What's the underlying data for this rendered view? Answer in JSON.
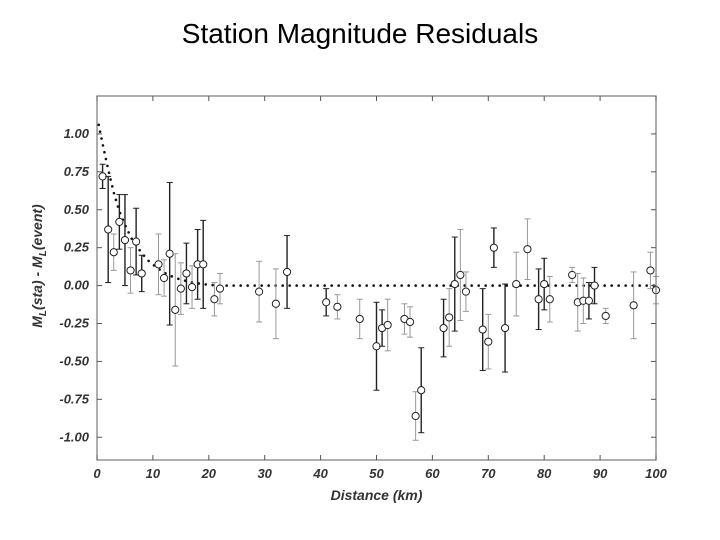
{
  "slide": {
    "title": "Station Magnitude Residuals"
  },
  "chart_data": {
    "type": "scatter",
    "xlabel": "Distance (km)",
    "ylabel": {
      "base1": "M",
      "sub1": "L",
      "mid": "(sta) - M",
      "base2": "",
      "sub2": "L",
      "tail": "(event)"
    },
    "xlim": [
      0,
      100
    ],
    "ylim": [
      -1.15,
      1.25
    ],
    "x_ticks": [
      0,
      10,
      20,
      30,
      40,
      50,
      60,
      70,
      80,
      90,
      100
    ],
    "x_tick_labels": [
      "0",
      "10",
      "20",
      "30",
      "40",
      "50",
      "60",
      "70",
      "80",
      "90",
      "100"
    ],
    "y_ticks": [
      1.0,
      0.75,
      0.5,
      0.25,
      0.0,
      -0.25,
      -0.5,
      -0.75,
      -1.0
    ],
    "y_tick_labels": [
      "1.00",
      "0.75",
      "0.50",
      "0.25",
      "0.00",
      "-0.25",
      "-0.50",
      "-0.75",
      "-1.00"
    ],
    "grid": false,
    "points": [
      {
        "x": 1.0,
        "y": 0.72,
        "err": 0.08,
        "dark": true
      },
      {
        "x": 2.0,
        "y": 0.37,
        "err": 0.35,
        "dark": true
      },
      {
        "x": 3.0,
        "y": 0.22,
        "err": 0.12,
        "dark": false
      },
      {
        "x": 4.0,
        "y": 0.42,
        "err": 0.18,
        "dark": true
      },
      {
        "x": 5.0,
        "y": 0.3,
        "err": 0.3,
        "dark": true
      },
      {
        "x": 6.0,
        "y": 0.1,
        "err": 0.15,
        "dark": false
      },
      {
        "x": 7.0,
        "y": 0.29,
        "err": 0.22,
        "dark": true
      },
      {
        "x": 8.0,
        "y": 0.08,
        "err": 0.12,
        "dark": true
      },
      {
        "x": 11.0,
        "y": 0.14,
        "err": 0.2,
        "dark": false
      },
      {
        "x": 12.0,
        "y": 0.05,
        "err": 0.12,
        "dark": false
      },
      {
        "x": 13.0,
        "y": 0.21,
        "err": 0.47,
        "dark": true
      },
      {
        "x": 14.0,
        "y": -0.16,
        "err": 0.37,
        "dark": false
      },
      {
        "x": 15.0,
        "y": -0.02,
        "err": 0.17,
        "dark": false
      },
      {
        "x": 16.0,
        "y": 0.08,
        "err": 0.2,
        "dark": true
      },
      {
        "x": 17.0,
        "y": -0.01,
        "err": 0.14,
        "dark": false
      },
      {
        "x": 18.0,
        "y": 0.14,
        "err": 0.23,
        "dark": true
      },
      {
        "x": 19.0,
        "y": 0.14,
        "err": 0.29,
        "dark": true
      },
      {
        "x": 21.0,
        "y": -0.09,
        "err": 0.11,
        "dark": false
      },
      {
        "x": 22.0,
        "y": -0.02,
        "err": 0.1,
        "dark": false
      },
      {
        "x": 29.0,
        "y": -0.04,
        "err": 0.2,
        "dark": false
      },
      {
        "x": 32.0,
        "y": -0.12,
        "err": 0.23,
        "dark": false
      },
      {
        "x": 34.0,
        "y": 0.09,
        "err": 0.24,
        "dark": true
      },
      {
        "x": 41.0,
        "y": -0.11,
        "err": 0.09,
        "dark": true
      },
      {
        "x": 43.0,
        "y": -0.14,
        "err": 0.08,
        "dark": false
      },
      {
        "x": 47.0,
        "y": -0.22,
        "err": 0.13,
        "dark": false
      },
      {
        "x": 50.0,
        "y": -0.4,
        "err": 0.29,
        "dark": true
      },
      {
        "x": 51.0,
        "y": -0.28,
        "err": 0.12,
        "dark": true
      },
      {
        "x": 52.0,
        "y": -0.26,
        "err": 0.17,
        "dark": false
      },
      {
        "x": 55.0,
        "y": -0.22,
        "err": 0.1,
        "dark": false
      },
      {
        "x": 56.0,
        "y": -0.24,
        "err": 0.1,
        "dark": false
      },
      {
        "x": 57.0,
        "y": -0.86,
        "err": 0.16,
        "dark": false
      },
      {
        "x": 58.0,
        "y": -0.69,
        "err": 0.28,
        "dark": true
      },
      {
        "x": 62.0,
        "y": -0.28,
        "err": 0.19,
        "dark": true
      },
      {
        "x": 63.0,
        "y": -0.21,
        "err": 0.19,
        "dark": false
      },
      {
        "x": 64.0,
        "y": 0.01,
        "err": 0.31,
        "dark": true
      },
      {
        "x": 65.0,
        "y": 0.07,
        "err": 0.3,
        "dark": false
      },
      {
        "x": 66.0,
        "y": -0.04,
        "err": 0.13,
        "dark": false
      },
      {
        "x": 69.0,
        "y": -0.29,
        "err": 0.27,
        "dark": true
      },
      {
        "x": 70.0,
        "y": -0.37,
        "err": 0.18,
        "dark": false
      },
      {
        "x": 71.0,
        "y": 0.25,
        "err": 0.13,
        "dark": true
      },
      {
        "x": 73.0,
        "y": -0.28,
        "err": 0.29,
        "dark": true
      },
      {
        "x": 75.0,
        "y": 0.01,
        "err": 0.21,
        "dark": false
      },
      {
        "x": 77.0,
        "y": 0.24,
        "err": 0.2,
        "dark": false
      },
      {
        "x": 79.0,
        "y": -0.09,
        "err": 0.2,
        "dark": true
      },
      {
        "x": 80.0,
        "y": 0.01,
        "err": 0.17,
        "dark": true
      },
      {
        "x": 81.0,
        "y": -0.09,
        "err": 0.15,
        "dark": false
      },
      {
        "x": 85.0,
        "y": 0.07,
        "err": 0.05,
        "dark": false
      },
      {
        "x": 86.0,
        "y": -0.11,
        "err": 0.19,
        "dark": false
      },
      {
        "x": 87.0,
        "y": -0.1,
        "err": 0.15,
        "dark": false
      },
      {
        "x": 88.0,
        "y": -0.1,
        "err": 0.12,
        "dark": true
      },
      {
        "x": 89.0,
        "y": 0.0,
        "err": 0.12,
        "dark": true
      },
      {
        "x": 91.0,
        "y": -0.2,
        "err": 0.05,
        "dark": false
      },
      {
        "x": 96.0,
        "y": -0.13,
        "err": 0.22,
        "dark": false
      },
      {
        "x": 99.0,
        "y": 0.1,
        "err": 0.12,
        "dark": false
      },
      {
        "x": 100.0,
        "y": -0.03,
        "err": 0.09,
        "dark": false
      }
    ],
    "trend_line": [
      [
        0.3,
        1.06
      ],
      [
        0.8,
        0.97
      ],
      [
        1.5,
        0.85
      ],
      [
        2.3,
        0.72
      ],
      [
        3.1,
        0.6
      ],
      [
        4.0,
        0.49
      ],
      [
        5.0,
        0.4
      ],
      [
        6.2,
        0.31
      ],
      [
        7.5,
        0.24
      ],
      [
        9.0,
        0.17
      ],
      [
        10.6,
        0.12
      ],
      [
        12.3,
        0.08
      ],
      [
        14.0,
        0.05
      ],
      [
        16.0,
        0.03
      ],
      [
        18.0,
        0.015
      ],
      [
        20.0,
        0.005
      ],
      [
        22.0,
        0.0
      ],
      [
        100.0,
        0.0
      ]
    ],
    "colors": {
      "dark": "#222222",
      "light": "#999999",
      "axis": "#555555"
    }
  }
}
